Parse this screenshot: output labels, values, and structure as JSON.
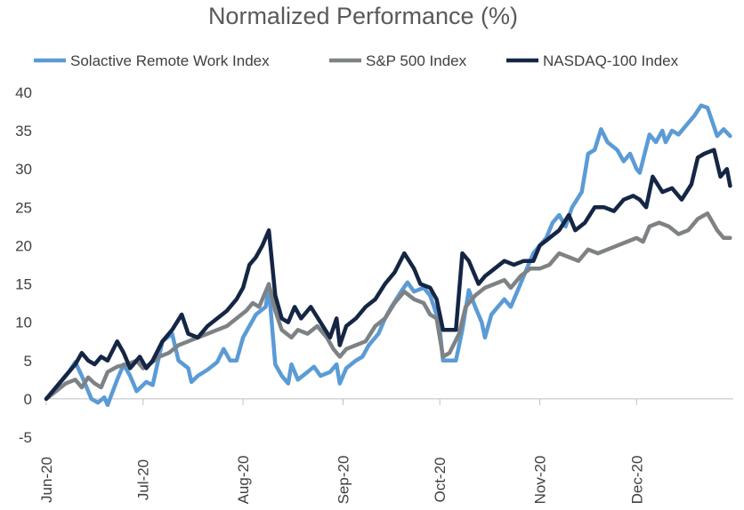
{
  "chart_data": {
    "type": "line",
    "title": "Normalized Performance (%)",
    "xlabel": "",
    "ylabel": "",
    "ylim": [
      -5,
      40
    ],
    "yticks": [
      -5,
      0,
      5,
      10,
      15,
      20,
      25,
      30,
      35,
      40
    ],
    "xlim": [
      "2020-06-01",
      "2020-12-31"
    ],
    "xticks": [
      {
        "label": "Jun-20",
        "date": "2020-06-01"
      },
      {
        "label": "Jul-20",
        "date": "2020-07-01"
      },
      {
        "label": "Aug-20",
        "date": "2020-08-01"
      },
      {
        "label": "Sep-20",
        "date": "2020-09-01"
      },
      {
        "label": "Oct-20",
        "date": "2020-10-01"
      },
      {
        "label": "Nov-20",
        "date": "2020-11-01"
      },
      {
        "label": "Dec-20",
        "date": "2020-12-01"
      }
    ],
    "grid": false,
    "legend": "top",
    "series": [
      {
        "name": "Solactive Remote Work Index",
        "color": "#5b9bd5",
        "points": [
          [
            "2020-06-01",
            0.0
          ],
          [
            "2020-06-04",
            1.5
          ],
          [
            "2020-06-08",
            3.5
          ],
          [
            "2020-06-10",
            4.8
          ],
          [
            "2020-06-12",
            3.0
          ],
          [
            "2020-06-15",
            0.0
          ],
          [
            "2020-06-17",
            -0.5
          ],
          [
            "2020-06-19",
            0.2
          ],
          [
            "2020-06-20",
            -0.8
          ],
          [
            "2020-06-23",
            2.5
          ],
          [
            "2020-06-25",
            4.5
          ],
          [
            "2020-06-27",
            3.0
          ],
          [
            "2020-06-29",
            1.0
          ],
          [
            "2020-07-02",
            2.2
          ],
          [
            "2020-07-04",
            1.8
          ],
          [
            "2020-07-07",
            7.5
          ],
          [
            "2020-07-10",
            8.5
          ],
          [
            "2020-07-12",
            5.0
          ],
          [
            "2020-07-15",
            4.0
          ],
          [
            "2020-07-16",
            2.2
          ],
          [
            "2020-07-18",
            3.0
          ],
          [
            "2020-07-21",
            3.8
          ],
          [
            "2020-07-24",
            4.8
          ],
          [
            "2020-07-26",
            6.5
          ],
          [
            "2020-07-28",
            5.0
          ],
          [
            "2020-07-30",
            5.0
          ],
          [
            "2020-08-01",
            8.0
          ],
          [
            "2020-08-03",
            9.5
          ],
          [
            "2020-08-05",
            11.0
          ],
          [
            "2020-08-08",
            12.0
          ],
          [
            "2020-08-09",
            14.5
          ],
          [
            "2020-08-11",
            4.5
          ],
          [
            "2020-08-13",
            3.0
          ],
          [
            "2020-08-15",
            2.0
          ],
          [
            "2020-08-16",
            4.5
          ],
          [
            "2020-08-18",
            2.5
          ],
          [
            "2020-08-21",
            3.5
          ],
          [
            "2020-08-23",
            4.2
          ],
          [
            "2020-08-25",
            3.0
          ],
          [
            "2020-08-28",
            3.5
          ],
          [
            "2020-08-30",
            4.5
          ],
          [
            "2020-08-31",
            2.0
          ],
          [
            "2020-09-02",
            4.0
          ],
          [
            "2020-09-05",
            5.0
          ],
          [
            "2020-09-07",
            5.5
          ],
          [
            "2020-09-09",
            7.0
          ],
          [
            "2020-09-12",
            8.5
          ],
          [
            "2020-09-14",
            10.5
          ],
          [
            "2020-09-16",
            12.0
          ],
          [
            "2020-09-19",
            14.0
          ],
          [
            "2020-09-21",
            15.2
          ],
          [
            "2020-09-23",
            14.0
          ],
          [
            "2020-09-26",
            14.5
          ],
          [
            "2020-09-28",
            13.5
          ],
          [
            "2020-09-30",
            11.0
          ],
          [
            "2020-10-01",
            9.0
          ],
          [
            "2020-10-02",
            5.0
          ],
          [
            "2020-10-04",
            5.0
          ],
          [
            "2020-10-06",
            5.0
          ],
          [
            "2020-10-08",
            9.0
          ],
          [
            "2020-10-10",
            14.2
          ],
          [
            "2020-10-12",
            12.0
          ],
          [
            "2020-10-14",
            10.0
          ],
          [
            "2020-10-15",
            8.0
          ],
          [
            "2020-10-17",
            11.0
          ],
          [
            "2020-10-19",
            12.0
          ],
          [
            "2020-10-21",
            13.0
          ],
          [
            "2020-10-23",
            12.0
          ],
          [
            "2020-10-26",
            15.0
          ],
          [
            "2020-10-28",
            17.0
          ],
          [
            "2020-10-30",
            19.0
          ],
          [
            "2020-11-01",
            20.0
          ],
          [
            "2020-11-03",
            21.0
          ],
          [
            "2020-11-05",
            23.0
          ],
          [
            "2020-11-07",
            24.0
          ],
          [
            "2020-11-09",
            22.5
          ],
          [
            "2020-11-11",
            25.0
          ],
          [
            "2020-11-14",
            27.0
          ],
          [
            "2020-11-16",
            32.0
          ],
          [
            "2020-11-18",
            32.5
          ],
          [
            "2020-11-20",
            35.2
          ],
          [
            "2020-11-22",
            33.5
          ],
          [
            "2020-11-25",
            32.5
          ],
          [
            "2020-11-27",
            31.0
          ],
          [
            "2020-11-29",
            32.0
          ],
          [
            "2020-12-01",
            30.0
          ],
          [
            "2020-12-02",
            29.5
          ],
          [
            "2020-12-05",
            34.5
          ],
          [
            "2020-12-07",
            33.5
          ],
          [
            "2020-12-09",
            35.0
          ],
          [
            "2020-12-10",
            33.5
          ],
          [
            "2020-12-12",
            35.0
          ],
          [
            "2020-12-14",
            34.5
          ],
          [
            "2020-12-16",
            35.5
          ],
          [
            "2020-12-19",
            37.0
          ],
          [
            "2020-12-21",
            38.3
          ],
          [
            "2020-12-23",
            38.0
          ],
          [
            "2020-12-26",
            34.3
          ],
          [
            "2020-12-28",
            35.2
          ],
          [
            "2020-12-30",
            34.3
          ]
        ]
      },
      {
        "name": "S&P 500 Index",
        "color": "#7f8284",
        "points": [
          [
            "2020-06-01",
            0.0
          ],
          [
            "2020-06-04",
            1.0
          ],
          [
            "2020-06-07",
            2.0
          ],
          [
            "2020-06-10",
            2.5
          ],
          [
            "2020-06-12",
            1.5
          ],
          [
            "2020-06-14",
            2.8
          ],
          [
            "2020-06-16",
            2.0
          ],
          [
            "2020-06-18",
            1.5
          ],
          [
            "2020-06-20",
            3.5
          ],
          [
            "2020-06-23",
            4.2
          ],
          [
            "2020-06-26",
            4.5
          ],
          [
            "2020-06-29",
            5.0
          ],
          [
            "2020-07-01",
            4.0
          ],
          [
            "2020-07-03",
            4.5
          ],
          [
            "2020-07-06",
            5.5
          ],
          [
            "2020-07-09",
            6.0
          ],
          [
            "2020-07-12",
            7.0
          ],
          [
            "2020-07-15",
            7.5
          ],
          [
            "2020-07-18",
            8.0
          ],
          [
            "2020-07-21",
            8.5
          ],
          [
            "2020-07-24",
            9.0
          ],
          [
            "2020-07-27",
            9.5
          ],
          [
            "2020-07-30",
            10.5
          ],
          [
            "2020-08-02",
            11.5
          ],
          [
            "2020-08-04",
            12.5
          ],
          [
            "2020-08-06",
            12.0
          ],
          [
            "2020-08-09",
            15.0
          ],
          [
            "2020-08-11",
            11.5
          ],
          [
            "2020-08-13",
            9.0
          ],
          [
            "2020-08-16",
            8.0
          ],
          [
            "2020-08-18",
            9.0
          ],
          [
            "2020-08-21",
            8.5
          ],
          [
            "2020-08-24",
            9.5
          ],
          [
            "2020-08-27",
            8.0
          ],
          [
            "2020-08-29",
            6.5
          ],
          [
            "2020-08-31",
            5.5
          ],
          [
            "2020-09-02",
            6.5
          ],
          [
            "2020-09-05",
            7.0
          ],
          [
            "2020-09-08",
            7.5
          ],
          [
            "2020-09-11",
            9.5
          ],
          [
            "2020-09-14",
            10.5
          ],
          [
            "2020-09-17",
            12.5
          ],
          [
            "2020-09-20",
            14.0
          ],
          [
            "2020-09-23",
            13.0
          ],
          [
            "2020-09-26",
            12.5
          ],
          [
            "2020-09-28",
            11.0
          ],
          [
            "2020-09-30",
            10.5
          ],
          [
            "2020-10-01",
            8.0
          ],
          [
            "2020-10-02",
            5.5
          ],
          [
            "2020-10-04",
            6.0
          ],
          [
            "2020-10-07",
            8.5
          ],
          [
            "2020-10-09",
            12.0
          ],
          [
            "2020-10-12",
            13.5
          ],
          [
            "2020-10-15",
            14.5
          ],
          [
            "2020-10-18",
            15.0
          ],
          [
            "2020-10-21",
            15.5
          ],
          [
            "2020-10-23",
            14.5
          ],
          [
            "2020-10-26",
            16.0
          ],
          [
            "2020-10-29",
            17.0
          ],
          [
            "2020-11-01",
            17.0
          ],
          [
            "2020-11-04",
            17.5
          ],
          [
            "2020-11-07",
            19.0
          ],
          [
            "2020-11-10",
            18.5
          ],
          [
            "2020-11-13",
            18.0
          ],
          [
            "2020-11-16",
            19.5
          ],
          [
            "2020-11-19",
            19.0
          ],
          [
            "2020-11-22",
            19.5
          ],
          [
            "2020-11-25",
            20.0
          ],
          [
            "2020-11-28",
            20.5
          ],
          [
            "2020-12-01",
            21.0
          ],
          [
            "2020-12-03",
            20.5
          ],
          [
            "2020-12-05",
            22.5
          ],
          [
            "2020-12-08",
            23.0
          ],
          [
            "2020-12-11",
            22.5
          ],
          [
            "2020-12-14",
            21.5
          ],
          [
            "2020-12-17",
            22.0
          ],
          [
            "2020-12-20",
            23.5
          ],
          [
            "2020-12-23",
            24.2
          ],
          [
            "2020-12-26",
            22.0
          ],
          [
            "2020-12-28",
            21.0
          ],
          [
            "2020-12-30",
            21.0
          ]
        ]
      },
      {
        "name": "NASDAQ-100 Index",
        "color": "#152645",
        "points": [
          [
            "2020-06-01",
            0.0
          ],
          [
            "2020-06-04",
            1.5
          ],
          [
            "2020-06-07",
            3.0
          ],
          [
            "2020-06-10",
            4.5
          ],
          [
            "2020-06-12",
            6.0
          ],
          [
            "2020-06-14",
            5.0
          ],
          [
            "2020-06-16",
            4.5
          ],
          [
            "2020-06-18",
            5.5
          ],
          [
            "2020-06-20",
            5.0
          ],
          [
            "2020-06-23",
            7.5
          ],
          [
            "2020-06-25",
            6.0
          ],
          [
            "2020-06-27",
            4.0
          ],
          [
            "2020-06-30",
            5.5
          ],
          [
            "2020-07-02",
            4.0
          ],
          [
            "2020-07-04",
            5.0
          ],
          [
            "2020-07-07",
            7.5
          ],
          [
            "2020-07-10",
            9.0
          ],
          [
            "2020-07-13",
            11.0
          ],
          [
            "2020-07-15",
            8.5
          ],
          [
            "2020-07-18",
            8.0
          ],
          [
            "2020-07-21",
            9.5
          ],
          [
            "2020-07-24",
            10.5
          ],
          [
            "2020-07-27",
            11.5
          ],
          [
            "2020-07-30",
            13.0
          ],
          [
            "2020-08-01",
            14.5
          ],
          [
            "2020-08-03",
            17.5
          ],
          [
            "2020-08-05",
            18.5
          ],
          [
            "2020-08-07",
            20.0
          ],
          [
            "2020-08-09",
            22.0
          ],
          [
            "2020-08-11",
            13.5
          ],
          [
            "2020-08-13",
            10.5
          ],
          [
            "2020-08-15",
            10.0
          ],
          [
            "2020-08-17",
            12.0
          ],
          [
            "2020-08-19",
            10.5
          ],
          [
            "2020-08-22",
            12.0
          ],
          [
            "2020-08-25",
            10.0
          ],
          [
            "2020-08-28",
            8.0
          ],
          [
            "2020-08-30",
            10.5
          ],
          [
            "2020-08-31",
            7.0
          ],
          [
            "2020-09-02",
            9.5
          ],
          [
            "2020-09-05",
            10.5
          ],
          [
            "2020-09-08",
            12.0
          ],
          [
            "2020-09-11",
            13.0
          ],
          [
            "2020-09-14",
            15.0
          ],
          [
            "2020-09-17",
            16.5
          ],
          [
            "2020-09-20",
            19.0
          ],
          [
            "2020-09-23",
            17.0
          ],
          [
            "2020-09-25",
            15.0
          ],
          [
            "2020-09-28",
            14.5
          ],
          [
            "2020-09-30",
            13.0
          ],
          [
            "2020-10-01",
            11.0
          ],
          [
            "2020-10-02",
            9.0
          ],
          [
            "2020-10-04",
            9.0
          ],
          [
            "2020-10-06",
            9.0
          ],
          [
            "2020-10-08",
            19.0
          ],
          [
            "2020-10-10",
            18.0
          ],
          [
            "2020-10-13",
            15.0
          ],
          [
            "2020-10-15",
            16.0
          ],
          [
            "2020-10-18",
            17.0
          ],
          [
            "2020-10-21",
            18.0
          ],
          [
            "2020-10-24",
            17.5
          ],
          [
            "2020-10-27",
            18.0
          ],
          [
            "2020-10-30",
            18.0
          ],
          [
            "2020-11-01",
            20.0
          ],
          [
            "2020-11-04",
            21.0
          ],
          [
            "2020-11-07",
            22.0
          ],
          [
            "2020-11-10",
            24.0
          ],
          [
            "2020-11-12",
            22.0
          ],
          [
            "2020-11-15",
            23.0
          ],
          [
            "2020-11-18",
            25.0
          ],
          [
            "2020-11-21",
            25.0
          ],
          [
            "2020-11-24",
            24.5
          ],
          [
            "2020-11-27",
            26.0
          ],
          [
            "2020-11-30",
            26.5
          ],
          [
            "2020-12-02",
            26.0
          ],
          [
            "2020-12-04",
            25.0
          ],
          [
            "2020-12-06",
            29.0
          ],
          [
            "2020-12-09",
            27.0
          ],
          [
            "2020-12-12",
            27.5
          ],
          [
            "2020-12-15",
            26.0
          ],
          [
            "2020-12-18",
            28.0
          ],
          [
            "2020-12-20",
            31.5
          ],
          [
            "2020-12-22",
            32.0
          ],
          [
            "2020-12-25",
            32.5
          ],
          [
            "2020-12-27",
            29.0
          ],
          [
            "2020-12-29",
            30.0
          ],
          [
            "2020-12-30",
            27.8
          ]
        ]
      }
    ]
  }
}
